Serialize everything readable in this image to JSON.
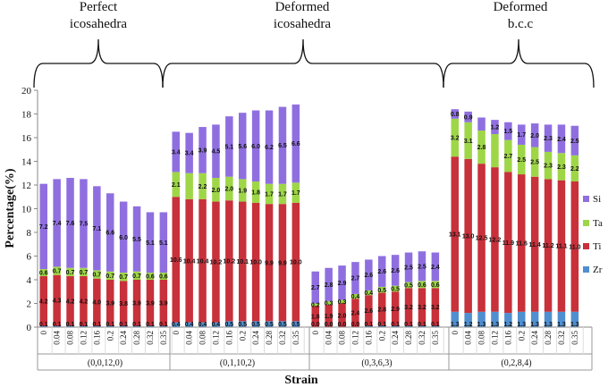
{
  "chart_data": {
    "type": "bar",
    "stacked": true,
    "xlabel": "Strain",
    "ylabel": "Percentage(%)",
    "ylim": [
      0,
      20
    ],
    "yticks": [
      0,
      2,
      4,
      6,
      8,
      10,
      12,
      14,
      16,
      18,
      20
    ],
    "legend_position": "right",
    "series": [
      {
        "name": "Zr",
        "color": "#4f8fd0"
      },
      {
        "name": "Ti",
        "color": "#c8303a"
      },
      {
        "name": "Ta",
        "color": "#9ed647"
      },
      {
        "name": "Si",
        "color": "#8f6fe0"
      }
    ],
    "headers": [
      {
        "line1": "Perfect",
        "line2": "icosahedra"
      },
      {
        "line1": "Deformed",
        "line2": "icosahedra"
      },
      {
        "line1": "Deformed",
        "line2": "b.c.c"
      }
    ],
    "groups": [
      {
        "label": "(0,0,12,0)",
        "strains": [
          "0",
          "0.04",
          "0.08",
          "0.12",
          "0.16",
          "0.2",
          "0.24",
          "0.28",
          "0.32",
          "0.35"
        ],
        "zr": [
          0.1,
          0.1,
          0.1,
          0.1,
          0.1,
          0.1,
          0.1,
          0.1,
          0.1,
          0.1
        ],
        "ti": [
          4.2,
          4.3,
          4.2,
          4.2,
          4.0,
          3.9,
          3.8,
          3.9,
          3.9,
          3.9
        ],
        "ta": [
          0.6,
          0.7,
          0.7,
          0.7,
          0.7,
          0.7,
          0.7,
          0.7,
          0.6,
          0.6
        ],
        "si": [
          7.2,
          7.4,
          7.6,
          7.5,
          7.1,
          6.6,
          6.0,
          5.5,
          5.1,
          5.1
        ],
        "zr_labels": [
          "0.1",
          "0.1",
          "0.1",
          "0.1",
          "0.1",
          "0.1",
          "0.1",
          "0.1",
          "0.1",
          "0.1"
        ],
        "ti_labels": [
          "4.2",
          "4.3",
          "4.2",
          "4.2",
          "4.0",
          "3.9",
          "3.8",
          "3.9",
          "3.9",
          "3.9"
        ],
        "ta_labels": [
          "0.6",
          "0.7",
          "0.7",
          "0.7",
          "0.7",
          "0.7",
          "0.7",
          "0.7",
          "0.6",
          "0.6"
        ],
        "si_labels": [
          "7.2",
          "7.4",
          "7.6",
          "7.5",
          "7.1",
          "6.6",
          "6.0",
          "5.5",
          "5.1",
          "5.1"
        ]
      },
      {
        "label": "(0,1,10,2)",
        "strains": [
          "0",
          "0.04",
          "0.08",
          "0.12",
          "0.16",
          "0.2",
          "0.24",
          "0.28",
          "0.32",
          "0.35"
        ],
        "zr": [
          0.4,
          0.4,
          0.4,
          0.4,
          0.5,
          0.5,
          0.5,
          0.5,
          0.5,
          0.5
        ],
        "ti": [
          10.6,
          10.4,
          10.4,
          10.2,
          10.2,
          10.1,
          10.0,
          9.9,
          9.9,
          10.0
        ],
        "ta": [
          2.1,
          2.2,
          2.2,
          2.0,
          2.0,
          1.9,
          1.8,
          1.7,
          1.7,
          1.7
        ],
        "si": [
          3.4,
          3.4,
          3.9,
          4.5,
          5.1,
          5.6,
          6.0,
          6.2,
          6.5,
          6.6
        ],
        "zr_labels": [
          "0.4",
          "0.4",
          "0.4",
          "0.4",
          "0.5",
          "0.5",
          "0.5",
          "0.5",
          "0.5",
          "0.5"
        ],
        "ti_labels": [
          "10.6",
          "10.4",
          "10.4",
          "10.2",
          "10.2",
          "10.1",
          "10.0",
          "9.9",
          "9.9",
          "10.0"
        ],
        "ta_labels": [
          "2.1",
          "",
          "2.2",
          "2.0",
          "2.0",
          "1.9",
          "1.8",
          "1.7",
          "1.7",
          "1.7"
        ],
        "si_labels": [
          "3.4",
          "3.4",
          "3.9",
          "4.5",
          "5.1",
          "5.6",
          "6.0",
          "6.2",
          "6.5",
          "6.6"
        ]
      },
      {
        "label": "(0,3,6,3)",
        "strains": [
          "0",
          "0.04",
          "0.08",
          "0.12",
          "0.16",
          "0.2",
          "0.24",
          "0.28",
          "0.32",
          "0.35"
        ],
        "zr": [
          0.0,
          0.0,
          0.0,
          0.0,
          0.1,
          0.1,
          0.1,
          0.1,
          0.1,
          0.1
        ],
        "ti": [
          1.8,
          1.9,
          2.0,
          2.4,
          2.6,
          2.8,
          2.9,
          3.2,
          3.2,
          3.2
        ],
        "ta": [
          0.2,
          0.3,
          0.3,
          0.4,
          0.4,
          0.5,
          0.5,
          0.5,
          0.6,
          0.6
        ],
        "si": [
          2.7,
          2.8,
          2.9,
          2.7,
          2.6,
          2.6,
          2.6,
          2.5,
          2.5,
          2.4
        ],
        "zr_labels": [
          "0.0",
          "0.0",
          "0.0",
          "0.0",
          "0.1",
          "0.1",
          "0.1",
          "0.1",
          "0.1",
          "0.1"
        ],
        "ti_labels": [
          "1.8",
          "1.9",
          "2.0",
          "2.4",
          "2.6",
          "2.8",
          "2.9",
          "3.2",
          "3.2",
          "3.2"
        ],
        "ta_labels": [
          "0.2",
          "0.3",
          "0.3",
          "0.4",
          "0.4",
          "0.5",
          "0.5",
          "0.5",
          "0.6",
          "0.6"
        ],
        "si_labels": [
          "2.7",
          "2.8",
          "2.9",
          "2.7",
          "2.6",
          "2.6",
          "2.6",
          "2.5",
          "2.5",
          "2.4"
        ]
      },
      {
        "label": "(0,2,8,4)",
        "strains": [
          "0",
          "0.04",
          "0.08",
          "0.12",
          "0.16",
          "0.2",
          "0.24",
          "0.28",
          "0.32",
          "0.35"
        ],
        "zr": [
          1.3,
          1.2,
          1.3,
          1.3,
          1.2,
          1.3,
          1.3,
          1.3,
          1.3,
          1.3
        ],
        "ti": [
          13.1,
          13.0,
          12.5,
          12.2,
          11.9,
          11.6,
          11.4,
          11.2,
          11.1,
          11.0
        ],
        "ta": [
          3.2,
          3.1,
          2.8,
          2.8,
          2.7,
          2.5,
          2.5,
          2.3,
          2.3,
          2.2
        ],
        "si": [
          0.8,
          0.9,
          1.1,
          1.2,
          1.5,
          1.7,
          2.0,
          2.3,
          2.4,
          2.5
        ],
        "zr_labels": [
          "1.3",
          "1.2",
          "1.3",
          "1.3",
          "1.2",
          "1.3",
          "1.3",
          "1.3",
          "1.3",
          "1.3"
        ],
        "ti_labels": [
          "13.1",
          "13.0",
          "12.5",
          "12.2",
          "11.9",
          "11.6",
          "11.4",
          "11.2",
          "11.1",
          "11.0"
        ],
        "ta_labels": [
          "3.2",
          "3.1",
          "2.8",
          "",
          "2.7",
          "2.5",
          "2.5",
          "2.3",
          "2.3",
          "2.2"
        ],
        "si_labels": [
          "0.8",
          "0.9",
          "",
          "1.2",
          "1.5",
          "1.7",
          "2.0",
          "2.3",
          "2.4",
          "2.5"
        ]
      }
    ]
  }
}
